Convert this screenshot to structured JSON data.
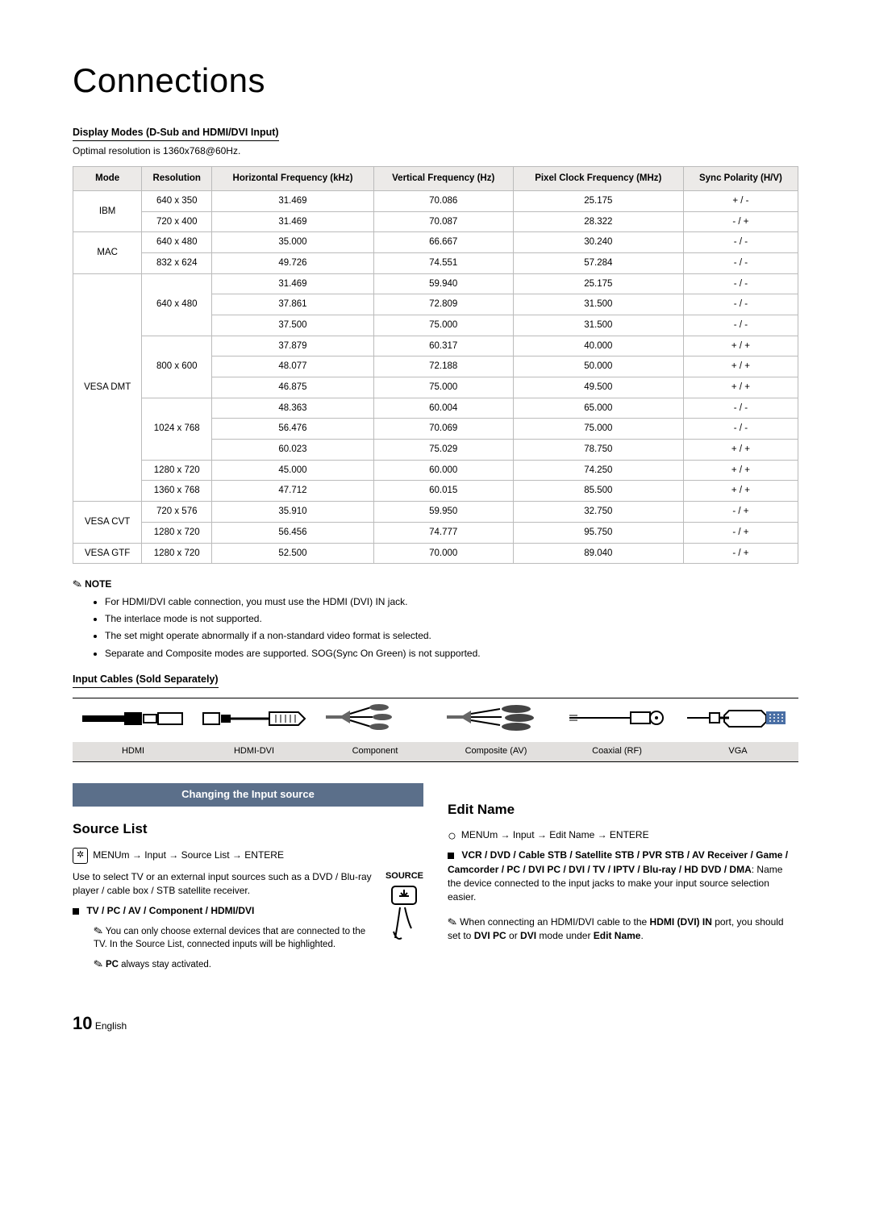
{
  "title": "Connections",
  "display_modes_heading": "Display Modes (D-Sub and HDMI/DVI Input)",
  "optimal_res": "Optimal resolution is 1360x768@60Hz.",
  "table": {
    "headers": [
      "Mode",
      "Resolution",
      "Horizontal Frequency (kHz)",
      "Vertical Frequency (Hz)",
      "Pixel Clock Frequency (MHz)",
      "Sync Polarity (H/V)"
    ],
    "groups": [
      {
        "mode": "IBM",
        "rows": [
          [
            "640 x 350",
            "31.469",
            "70.086",
            "25.175",
            "+ / -"
          ],
          [
            "720 x 400",
            "31.469",
            "70.087",
            "28.322",
            "- / +"
          ]
        ]
      },
      {
        "mode": "MAC",
        "rows": [
          [
            "640 x 480",
            "35.000",
            "66.667",
            "30.240",
            "- / -"
          ],
          [
            "832 x 624",
            "49.726",
            "74.551",
            "57.284",
            "- / -"
          ]
        ]
      },
      {
        "mode": "VESA DMT",
        "rows": [
          [
            "640 x 480",
            "31.469",
            "59.940",
            "25.175",
            "- / -"
          ],
          [
            "",
            "37.861",
            "72.809",
            "31.500",
            "- / -"
          ],
          [
            "",
            "37.500",
            "75.000",
            "31.500",
            "- / -"
          ],
          [
            "800 x 600",
            "37.879",
            "60.317",
            "40.000",
            "+ / +"
          ],
          [
            "",
            "48.077",
            "72.188",
            "50.000",
            "+ / +"
          ],
          [
            "",
            "46.875",
            "75.000",
            "49.500",
            "+ / +"
          ],
          [
            "1024 x 768",
            "48.363",
            "60.004",
            "65.000",
            "- / -"
          ],
          [
            "",
            "56.476",
            "70.069",
            "75.000",
            "- / -"
          ],
          [
            "",
            "60.023",
            "75.029",
            "78.750",
            "+ / +"
          ],
          [
            "1280 x 720",
            "45.000",
            "60.000",
            "74.250",
            "+ / +"
          ],
          [
            "1360 x 768",
            "47.712",
            "60.015",
            "85.500",
            "+ / +"
          ]
        ]
      },
      {
        "mode": "VESA CVT",
        "rows": [
          [
            "720 x 576",
            "35.910",
            "59.950",
            "32.750",
            "- / +"
          ],
          [
            "1280 x 720",
            "56.456",
            "74.777",
            "95.750",
            "- / +"
          ]
        ]
      },
      {
        "mode": "VESA GTF",
        "rows": [
          [
            "1280 x 720",
            "52.500",
            "70.000",
            "89.040",
            "- / +"
          ]
        ]
      }
    ]
  },
  "note_label": "NOTE",
  "notes": [
    "For HDMI/DVI cable connection, you must use the HDMI (DVI) IN jack.",
    "The interlace mode is not supported.",
    "The set might operate abnormally if a non-standard video format is selected.",
    "Separate and Composite modes are supported. SOG(Sync On Green) is not supported."
  ],
  "cables_heading": "Input Cables (Sold Separately)",
  "cables": [
    "HDMI",
    "HDMI-DVI",
    "Component",
    "Composite (AV)",
    "Coaxial (RF)",
    "VGA"
  ],
  "change_src_heading": "Changing the Input source",
  "source_list": {
    "heading": "Source List",
    "path_prefix": "MENUm",
    "path": " → Input → Source List → ENTERE",
    "desc": "Use to select TV or an external input sources such as a DVD / Blu-ray player / cable box / STB satellite receiver.",
    "bullet_heading": "TV / PC / AV / Component / HDMI/DVI",
    "note1": "You can only choose external devices that are connected to the TV. In the Source List, connected inputs will be highlighted.",
    "note2_prefix": "PC",
    "note2_rest": " always stay activated.",
    "source_label": "SOURCE"
  },
  "edit_name": {
    "heading": "Edit Name",
    "path_prefix": "MENUm",
    "path": " → Input → Edit Name → ENTERE",
    "bullet_bold": "VCR / DVD / Cable STB / Satellite STB / PVR STB / AV Receiver / Game / Camcorder / PC / DVI PC / DVI / TV / IPTV / Blu-ray / HD DVD / DMA",
    "bullet_rest": ": Name the device connected to the input jacks to make your input source selection easier.",
    "note_prefix": "When connecting an HDMI/DVI cable to the ",
    "note_b1": "HDMI (DVI) IN",
    "note_mid": " port, you should set to ",
    "note_b2": "DVI PC",
    "note_or": " or ",
    "note_b3": "DVI",
    "note_mid2": " mode under ",
    "note_b4": "Edit Name",
    "note_end": "."
  },
  "footer": {
    "num": "10",
    "lang": "English"
  }
}
